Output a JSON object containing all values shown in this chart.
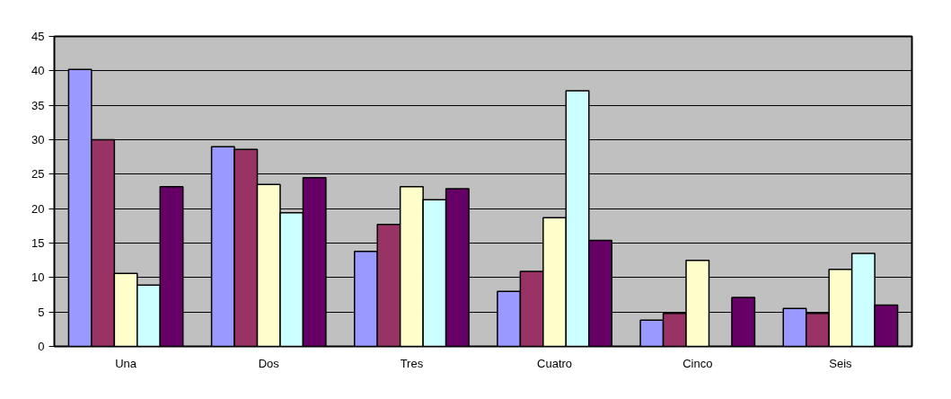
{
  "chart_data": {
    "type": "bar",
    "categories": [
      "Una",
      "Dos",
      "Tres",
      "Cuatro",
      "Cinco",
      "Seis"
    ],
    "series": [
      {
        "color": "#9999ff",
        "values": [
          40.2,
          29.0,
          13.8,
          8.0,
          3.8,
          5.5
        ]
      },
      {
        "color": "#993366",
        "values": [
          30.0,
          28.6,
          17.7,
          10.9,
          4.8,
          4.8
        ]
      },
      {
        "color": "#ffffcc",
        "values": [
          10.6,
          23.5,
          23.2,
          18.7,
          12.5,
          11.2
        ]
      },
      {
        "color": "#ccffff",
        "values": [
          8.9,
          19.4,
          21.3,
          37.1,
          null,
          13.5
        ]
      },
      {
        "color": "#660066",
        "values": [
          23.2,
          24.5,
          22.9,
          15.4,
          7.1,
          6.0
        ]
      }
    ],
    "ylim": [
      0,
      45
    ],
    "yticks": [
      0,
      5,
      10,
      15,
      20,
      25,
      30,
      35,
      40,
      45
    ],
    "grid": "y"
  }
}
